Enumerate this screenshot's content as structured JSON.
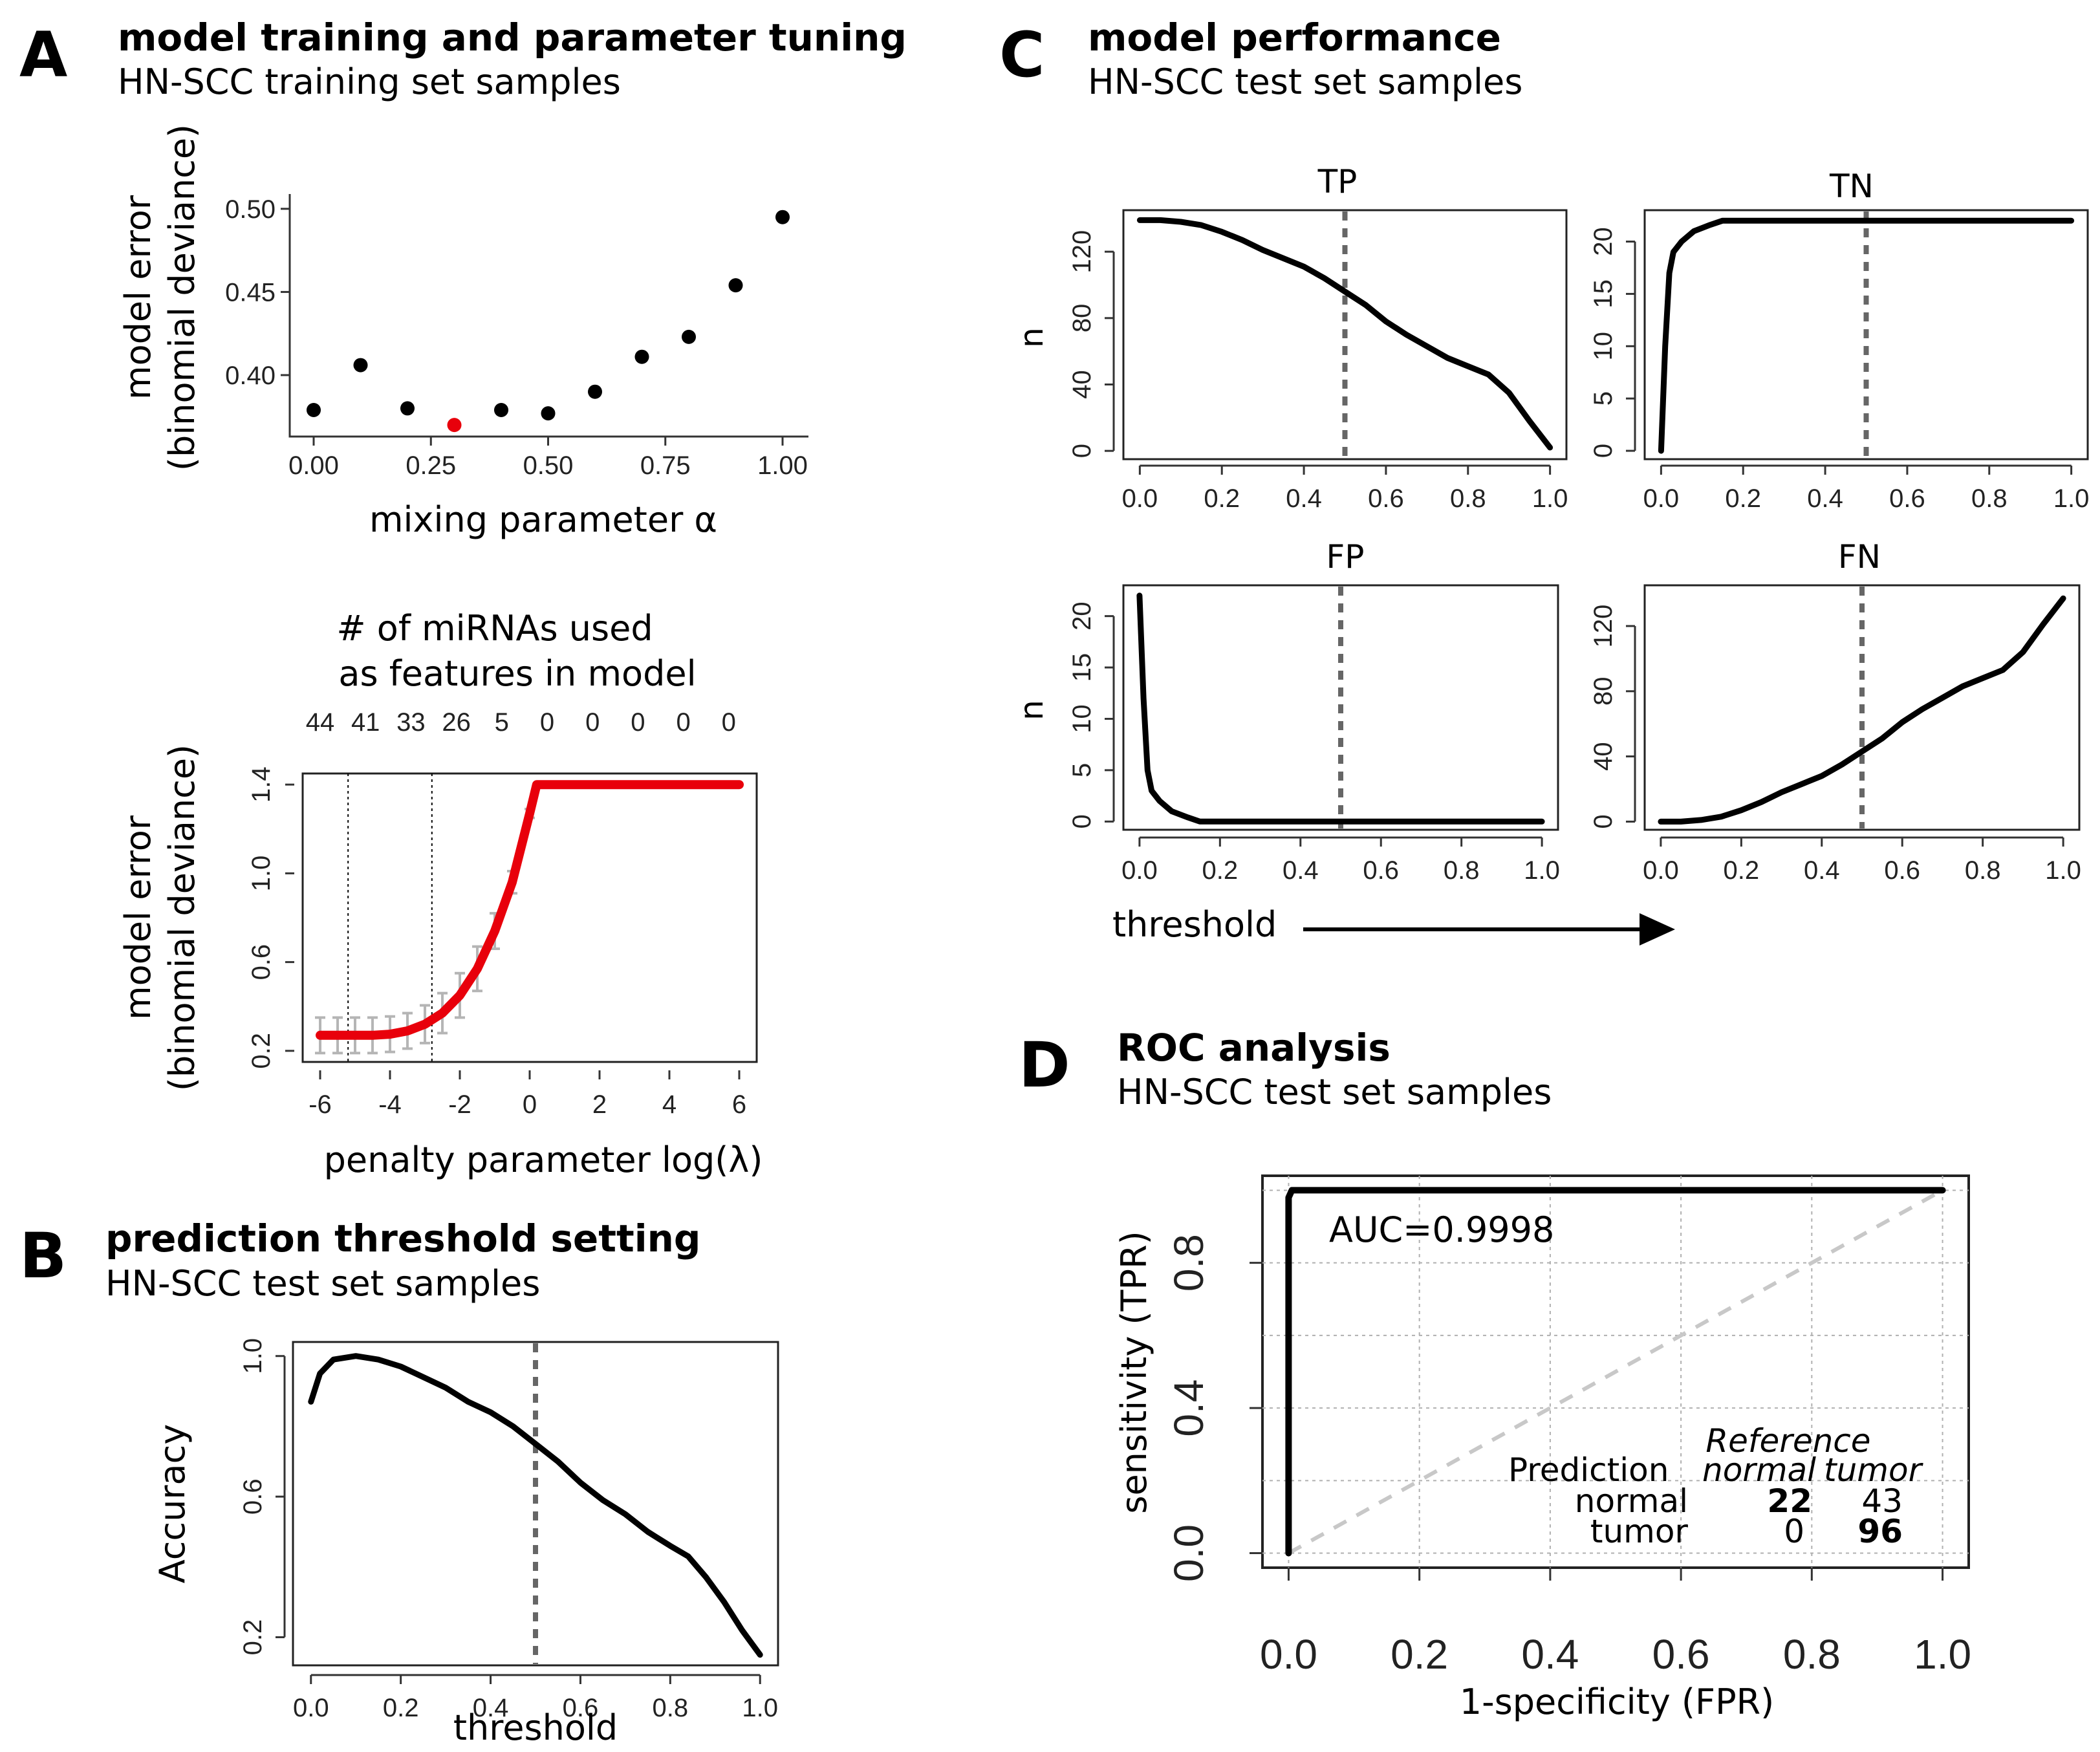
{
  "panels": {
    "A": {
      "letter": "A",
      "title": "model training and parameter tuning",
      "subtitle": "HN-SCC training set samples"
    },
    "B": {
      "letter": "B",
      "title": "prediction threshold setting",
      "subtitle": "HN-SCC test set samples"
    },
    "C": {
      "letter": "C",
      "title": "model performance",
      "subtitle": "HN-SCC test set samples",
      "threshold_label": "threshold"
    },
    "D": {
      "letter": "D",
      "title": "ROC analysis",
      "subtitle": "HN-SCC test set samples"
    }
  },
  "chart_data": [
    {
      "id": "alpha",
      "type": "scatter",
      "xlabel": "mixing parameter α",
      "ylabel": [
        "model error",
        "(binomial deviance)"
      ],
      "xlim": [
        0,
        1
      ],
      "ylim": [
        0.365,
        0.505
      ],
      "xticks": [
        0,
        0.25,
        0.5,
        0.75,
        1
      ],
      "xtick_labels": [
        "0.00",
        "0.25",
        "0.50",
        "0.75",
        "1.00"
      ],
      "yticks": [
        0.4,
        0.45,
        0.5
      ],
      "ytick_labels": [
        "0.40",
        "0.45",
        "0.50"
      ],
      "x": [
        0,
        0.1,
        0.2,
        0.3,
        0.4,
        0.5,
        0.6,
        0.7,
        0.8,
        0.9,
        1.0
      ],
      "y": [
        0.379,
        0.406,
        0.38,
        0.37,
        0.379,
        0.377,
        0.39,
        0.411,
        0.423,
        0.454,
        0.495
      ],
      "colors": [
        "#000000",
        "#000000",
        "#000000",
        "#e8000b",
        "#000000",
        "#000000",
        "#000000",
        "#000000",
        "#000000",
        "#000000",
        "#000000"
      ],
      "highlight_color": "#e8000b"
    },
    {
      "id": "lambda",
      "type": "line",
      "top_title": [
        "# of miRNAs used",
        "as features in model"
      ],
      "top_ticks": [
        "44",
        "41",
        "33",
        "26",
        "5",
        "0",
        "0",
        "0",
        "0",
        "0"
      ],
      "top_tick_x": [
        -6,
        -4.7,
        -3.4,
        -2.1,
        -0.8,
        0.5,
        1.8,
        3.1,
        4.4,
        5.7
      ],
      "xlabel": "penalty parameter log(λ)",
      "ylabel": [
        "model error",
        "(binomial deviance)"
      ],
      "xlim": [
        -6.5,
        6.5
      ],
      "ylim": [
        0.15,
        1.45
      ],
      "xticks": [
        -6,
        -4,
        -2,
        0,
        2,
        4,
        6
      ],
      "xtick_labels": [
        "-6",
        "-4",
        "-2",
        "0",
        "2",
        "4",
        "6"
      ],
      "yticks": [
        0.2,
        0.6,
        1.0,
        1.4
      ],
      "ytick_labels": [
        "0.2",
        "0.6",
        "1.0",
        "1.4"
      ],
      "vlines": [
        -5.2,
        -2.8
      ],
      "x": [
        -6,
        -5.5,
        -5,
        -4.5,
        -4,
        -3.5,
        -3,
        -2.5,
        -2,
        -1.5,
        -1,
        -0.5,
        0,
        0.2,
        1,
        2,
        3,
        4,
        5,
        6
      ],
      "y": [
        0.27,
        0.27,
        0.27,
        0.27,
        0.275,
        0.29,
        0.32,
        0.37,
        0.45,
        0.57,
        0.74,
        0.96,
        1.27,
        1.4,
        1.4,
        1.4,
        1.4,
        1.4,
        1.4,
        1.4
      ],
      "error": [
        0.08,
        0.08,
        0.08,
        0.08,
        0.08,
        0.08,
        0.085,
        0.09,
        0.1,
        0.1,
        0.08,
        0.05,
        0.02,
        0,
        0,
        0,
        0,
        0,
        0,
        0
      ],
      "line_color": "#e8000b",
      "error_color": "#b5b5b5"
    },
    {
      "id": "accuracy",
      "type": "line",
      "xlabel": "threshold",
      "ylabel": "Accuracy",
      "xlim": [
        -0.04,
        1.04
      ],
      "ylim": [
        0.12,
        1.04
      ],
      "xticks": [
        0,
        0.2,
        0.4,
        0.6,
        0.8,
        1
      ],
      "xtick_labels": [
        "0.0",
        "0.2",
        "0.4",
        "0.6",
        "0.8",
        "1.0"
      ],
      "yticks": [
        0.2,
        0.6,
        1.0
      ],
      "ytick_labels": [
        "0.2",
        "0.6",
        "1.0"
      ],
      "vline": 0.5,
      "x": [
        0,
        0.02,
        0.05,
        0.1,
        0.15,
        0.2,
        0.25,
        0.3,
        0.35,
        0.4,
        0.45,
        0.5,
        0.55,
        0.6,
        0.65,
        0.7,
        0.75,
        0.8,
        0.84,
        0.88,
        0.92,
        0.96,
        1.0
      ],
      "y": [
        0.87,
        0.95,
        0.99,
        1.0,
        0.99,
        0.97,
        0.94,
        0.91,
        0.87,
        0.84,
        0.8,
        0.75,
        0.7,
        0.64,
        0.59,
        0.55,
        0.5,
        0.46,
        0.43,
        0.37,
        0.3,
        0.22,
        0.15
      ]
    },
    {
      "id": "TP",
      "type": "line",
      "title": "TP",
      "ylabel": "n",
      "xlim": [
        -0.04,
        1.04
      ],
      "ylim": [
        -5,
        145
      ],
      "xticks": [
        0,
        0.2,
        0.4,
        0.6,
        0.8,
        1
      ],
      "xtick_labels": [
        "0.0",
        "0.2",
        "0.4",
        "0.6",
        "0.8",
        "1.0"
      ],
      "yticks": [
        0,
        40,
        80,
        120
      ],
      "ytick_labels": [
        "0",
        "40",
        "80",
        "120"
      ],
      "vline": 0.5,
      "x": [
        0,
        0.05,
        0.1,
        0.15,
        0.2,
        0.25,
        0.3,
        0.35,
        0.4,
        0.45,
        0.5,
        0.55,
        0.6,
        0.65,
        0.7,
        0.75,
        0.8,
        0.85,
        0.9,
        0.95,
        1.0
      ],
      "y": [
        139,
        139,
        138,
        136,
        132,
        127,
        121,
        116,
        111,
        104,
        96,
        88,
        78,
        70,
        63,
        56,
        51,
        46,
        35,
        18,
        2
      ]
    },
    {
      "id": "TN",
      "type": "line",
      "title": "TN",
      "xlim": [
        -0.04,
        1.04
      ],
      "ylim": [
        -0.8,
        23
      ],
      "xticks": [
        0,
        0.2,
        0.4,
        0.6,
        0.8,
        1
      ],
      "xtick_labels": [
        "0.0",
        "0.2",
        "0.4",
        "0.6",
        "0.8",
        "1.0"
      ],
      "yticks": [
        0,
        5,
        10,
        15,
        20
      ],
      "ytick_labels": [
        "0",
        "5",
        "10",
        "15",
        "20"
      ],
      "vline": 0.5,
      "x": [
        0,
        0.01,
        0.02,
        0.03,
        0.05,
        0.08,
        0.12,
        0.15,
        0.5,
        1.0
      ],
      "y": [
        0,
        10,
        17,
        19,
        20,
        21,
        21.6,
        22,
        22,
        22
      ]
    },
    {
      "id": "FP",
      "type": "line",
      "title": "FP",
      "ylabel": "n",
      "xlim": [
        -0.04,
        1.04
      ],
      "ylim": [
        -0.8,
        23
      ],
      "xticks": [
        0,
        0.2,
        0.4,
        0.6,
        0.8,
        1
      ],
      "xtick_labels": [
        "0.0",
        "0.2",
        "0.4",
        "0.6",
        "0.8",
        "1.0"
      ],
      "yticks": [
        0,
        5,
        10,
        15,
        20
      ],
      "ytick_labels": [
        "0",
        "5",
        "10",
        "15",
        "20"
      ],
      "vline": 0.5,
      "x": [
        0,
        0.01,
        0.02,
        0.03,
        0.05,
        0.08,
        0.12,
        0.15,
        0.5,
        1.0
      ],
      "y": [
        22,
        12,
        5,
        3,
        2,
        1,
        0.4,
        0,
        0,
        0
      ]
    },
    {
      "id": "FN",
      "type": "line",
      "title": "FN",
      "xlim": [
        -0.04,
        1.04
      ],
      "ylim": [
        -5,
        145
      ],
      "xticks": [
        0,
        0.2,
        0.4,
        0.6,
        0.8,
        1
      ],
      "xtick_labels": [
        "0.0",
        "0.2",
        "0.4",
        "0.6",
        "0.8",
        "1.0"
      ],
      "yticks": [
        0,
        40,
        80,
        120
      ],
      "ytick_labels": [
        "0",
        "40",
        "80",
        "120"
      ],
      "vline": 0.5,
      "x": [
        0,
        0.05,
        0.1,
        0.15,
        0.2,
        0.25,
        0.3,
        0.35,
        0.4,
        0.45,
        0.5,
        0.55,
        0.6,
        0.65,
        0.7,
        0.75,
        0.8,
        0.85,
        0.9,
        0.95,
        1.0
      ],
      "y": [
        0,
        0,
        1,
        3,
        7,
        12,
        18,
        23,
        28,
        35,
        43,
        51,
        61,
        69,
        76,
        83,
        88,
        93,
        104,
        121,
        137
      ]
    },
    {
      "id": "roc",
      "type": "line",
      "xlabel": "1-specificity (FPR)",
      "ylabel": "sensitivity (TPR)",
      "xlim": [
        -0.04,
        1.04
      ],
      "ylim": [
        -0.04,
        1.04
      ],
      "xticks": [
        0,
        0.2,
        0.4,
        0.6,
        0.8,
        1
      ],
      "xtick_labels": [
        "0.0",
        "0.2",
        "0.4",
        "0.6",
        "0.8",
        "1.0"
      ],
      "yticks": [
        0,
        0.4,
        0.8
      ],
      "ytick_labels": [
        "0.0",
        "0.4",
        "0.8"
      ],
      "grid": true,
      "x": [
        0,
        0,
        0.005,
        0.02,
        1.0
      ],
      "y": [
        0,
        0.98,
        1.0,
        1.0,
        1.0
      ],
      "diagonal_color": "#c8c8c8",
      "annotation": "AUC=0.9998",
      "confusion": {
        "header_reference": "Reference",
        "header_prediction": "Prediction",
        "col_labels": [
          "normal",
          "tumor"
        ],
        "row_labels": [
          "normal",
          "tumor"
        ],
        "cells": [
          [
            "22",
            "43"
          ],
          [
            "0",
            "96"
          ]
        ]
      }
    }
  ]
}
